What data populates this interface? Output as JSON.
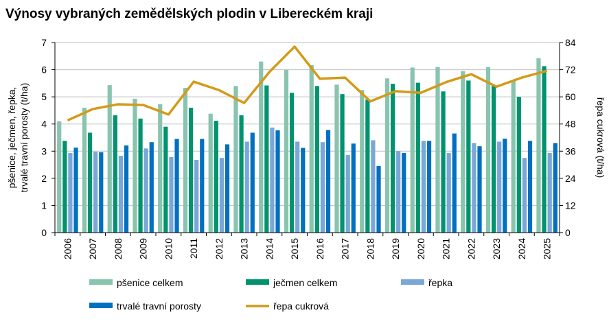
{
  "chart_data": {
    "type": "bar+line",
    "title": "Výnosy vybraných zemědělských plodin v Libereckém kraji",
    "ylabel": "pšenice, ječmen, řepka, trvalé travní porosty  (t/ha)",
    "ylabel_lines": [
      "pšenice, ječmen, řepka,",
      "trvalé travní porosty  (t/ha)"
    ],
    "y2label": "řepa cukrová  (t/ha)",
    "ylim": [
      0,
      7
    ],
    "y2lim": [
      0,
      84
    ],
    "yticks": [
      "0",
      "1",
      "2",
      "3",
      "4",
      "5",
      "6",
      "7"
    ],
    "y2ticks": [
      "0",
      "12",
      "24",
      "36",
      "48",
      "60",
      "72",
      "84"
    ],
    "grid": true,
    "legend": "bottom",
    "categories": [
      "2006",
      "2007",
      "2008",
      "2009",
      "2010",
      "2011",
      "2012",
      "2013",
      "2014",
      "2015",
      "2016",
      "2017",
      "2018",
      "2019",
      "2020",
      "2021",
      "2022",
      "2023",
      "2024",
      "2025"
    ],
    "series": [
      {
        "name": "pšenice celkem",
        "type": "bar",
        "axis": "left",
        "color": "#88c4ae",
        "values": [
          4.1,
          4.6,
          5.43,
          4.93,
          4.73,
          5.33,
          4.38,
          5.4,
          6.3,
          6.0,
          6.17,
          5.45,
          5.25,
          5.68,
          6.08,
          6.1,
          5.95,
          6.1,
          5.6,
          6.42
        ]
      },
      {
        "name": "ječmen celkem",
        "type": "bar",
        "axis": "left",
        "color": "#00936e",
        "values": [
          3.38,
          3.68,
          4.32,
          4.2,
          3.9,
          4.6,
          4.12,
          4.32,
          5.42,
          5.15,
          5.4,
          5.1,
          4.9,
          5.48,
          5.52,
          5.2,
          5.6,
          5.4,
          5.0,
          6.13
        ]
      },
      {
        "name": "řepka",
        "type": "bar",
        "axis": "left",
        "color": "#7aa6d8",
        "values": [
          2.93,
          2.98,
          2.83,
          3.1,
          2.78,
          2.68,
          2.75,
          3.35,
          3.87,
          3.35,
          3.33,
          2.86,
          3.4,
          3.0,
          3.38,
          2.93,
          3.3,
          3.35,
          2.75,
          2.93
        ]
      },
      {
        "name": "trvalé travní porosty",
        "type": "bar",
        "axis": "left",
        "color": "#0070c0",
        "values": [
          3.13,
          2.96,
          3.21,
          3.33,
          3.45,
          3.45,
          3.25,
          3.68,
          3.77,
          3.12,
          3.78,
          3.28,
          2.45,
          2.93,
          3.38,
          3.65,
          3.18,
          3.46,
          3.38,
          3.3
        ]
      },
      {
        "name": "řepa cukrová",
        "type": "line",
        "axis": "right",
        "color": "#d49a17",
        "values": [
          49.6,
          54.6,
          56.7,
          56.4,
          52.2,
          66.7,
          63.0,
          57.3,
          71.0,
          82.2,
          68.0,
          68.5,
          58.0,
          62.5,
          61.8,
          66.5,
          70.0,
          64.5,
          68.5,
          71.5
        ]
      }
    ]
  }
}
